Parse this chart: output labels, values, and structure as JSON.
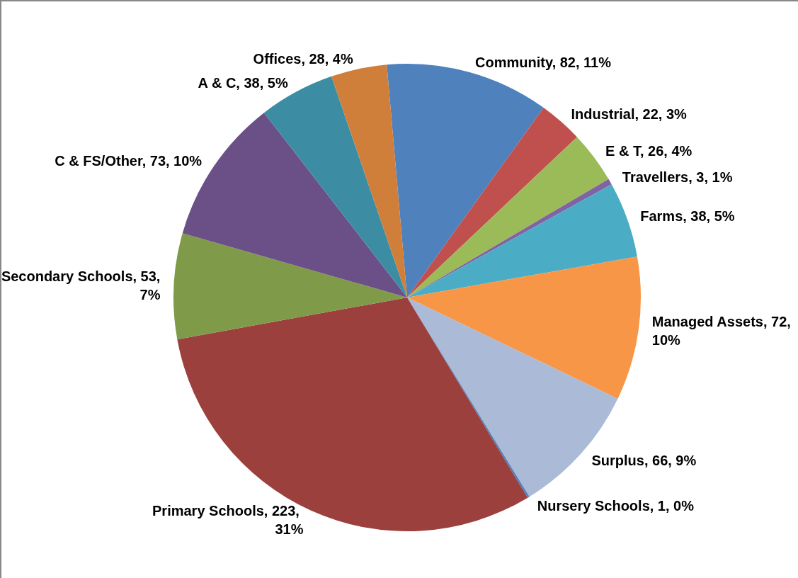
{
  "chart_data": {
    "type": "pie",
    "categories": [
      "Community",
      "Industrial",
      "E & T",
      "Travellers",
      "Farms",
      "Managed Assets",
      "Surplus",
      "Nursery Schools",
      "Primary Schools",
      "Secondary Schools",
      "C & FS/Other",
      "A & C",
      "Offices"
    ],
    "values": [
      82,
      22,
      26,
      3,
      38,
      72,
      66,
      1,
      223,
      53,
      73,
      38,
      28
    ],
    "value_labels": [
      "82, 11%",
      "22, 3%",
      "26, 4%",
      "3, 1%",
      "38, 5%",
      "72, 10%",
      "66, 9%",
      "1, 0%",
      "223, 31%",
      "53, 7%",
      "73, 10%",
      "38, 5%",
      "28, 4%"
    ],
    "colors": [
      "#4f81bd",
      "#c0504d",
      "#9bbb59",
      "#8064a2",
      "#4bacc6",
      "#f79646",
      "#aabad7",
      "#4f81bd",
      "#9c403d",
      "#7f9a48",
      "#6a5087",
      "#3c8da3",
      "#d07f3a"
    ],
    "legend": false
  }
}
